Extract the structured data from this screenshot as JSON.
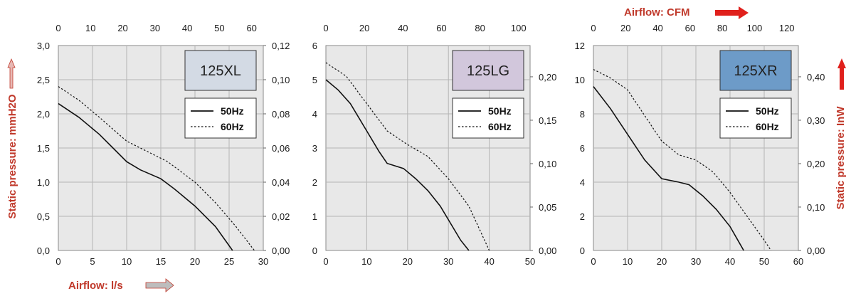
{
  "labels": {
    "left_ylabel": "Static pressure: mmH2O",
    "right_ylabel": "Static pressure: InW",
    "bottom_xlabel": "Airflow: l/s",
    "top_xlabel": "Airflow: CFM"
  },
  "colors": {
    "label_red": "#c0392b",
    "plot_bg": "#e8e8e8",
    "grid": "#b5b5b5",
    "arrow_grey": "#9a9a9a",
    "arrow_red": "#e0201c"
  },
  "legend": {
    "hz50": "50Hz",
    "hz60": "60Hz"
  },
  "chart_data": [
    {
      "type": "line",
      "model": "125XL",
      "model_color": "#d3dae4",
      "xlim": [
        0,
        30
      ],
      "ylim": [
        0,
        3.0
      ],
      "x_ticks": [
        "0",
        "5",
        "10",
        "15",
        "20",
        "25",
        "30"
      ],
      "y_ticks": [
        "0,0",
        "0,5",
        "1,0",
        "1,5",
        "2,0",
        "2,5",
        "3,0"
      ],
      "top_ticks": [
        "0",
        "10",
        "20",
        "30",
        "40",
        "50",
        "60"
      ],
      "top_range": [
        0,
        63.6
      ],
      "right_ticks": [
        "0,00",
        "0,02",
        "0,04",
        "0,06",
        "0,08",
        "0,10",
        "0,12"
      ],
      "right_range": [
        0,
        0.12
      ],
      "series": [
        {
          "name": "50Hz",
          "style": "solid",
          "points": [
            [
              0,
              2.15
            ],
            [
              3,
              1.95
            ],
            [
              6,
              1.7
            ],
            [
              8,
              1.5
            ],
            [
              10,
              1.3
            ],
            [
              12,
              1.18
            ],
            [
              15,
              1.05
            ],
            [
              17,
              0.9
            ],
            [
              20,
              0.65
            ],
            [
              23,
              0.35
            ],
            [
              25.5,
              0.0
            ]
          ]
        },
        {
          "name": "60Hz",
          "style": "dotted",
          "points": [
            [
              0,
              2.4
            ],
            [
              3,
              2.2
            ],
            [
              6,
              1.95
            ],
            [
              10,
              1.6
            ],
            [
              13,
              1.45
            ],
            [
              16,
              1.3
            ],
            [
              20,
              1.0
            ],
            [
              23,
              0.7
            ],
            [
              26,
              0.35
            ],
            [
              28.7,
              0.0
            ]
          ]
        }
      ]
    },
    {
      "type": "line",
      "model": "125LG",
      "model_color": "#d2c7dc",
      "xlim": [
        0,
        50
      ],
      "ylim": [
        0,
        6
      ],
      "x_ticks": [
        "0",
        "10",
        "20",
        "30",
        "40",
        "50"
      ],
      "y_ticks": [
        "0",
        "1",
        "2",
        "3",
        "4",
        "5",
        "6"
      ],
      "top_ticks": [
        "0",
        "20",
        "40",
        "60",
        "80",
        "100"
      ],
      "top_range": [
        0,
        106
      ],
      "right_ticks": [
        "0,00",
        "0,05",
        "0,10",
        "0,15",
        "0,20"
      ],
      "right_range": [
        0,
        0.236
      ],
      "series": [
        {
          "name": "50Hz",
          "style": "solid",
          "points": [
            [
              0,
              5.0
            ],
            [
              3,
              4.7
            ],
            [
              6,
              4.3
            ],
            [
              10,
              3.5
            ],
            [
              13,
              2.9
            ],
            [
              15,
              2.55
            ],
            [
              19,
              2.4
            ],
            [
              22,
              2.1
            ],
            [
              25,
              1.75
            ],
            [
              28,
              1.3
            ],
            [
              31,
              0.7
            ],
            [
              33,
              0.3
            ],
            [
              35,
              0.0
            ]
          ]
        },
        {
          "name": "60Hz",
          "style": "dotted",
          "points": [
            [
              0,
              5.5
            ],
            [
              5,
              5.1
            ],
            [
              10,
              4.3
            ],
            [
              15,
              3.5
            ],
            [
              20,
              3.1
            ],
            [
              25,
              2.75
            ],
            [
              30,
              2.1
            ],
            [
              35,
              1.3
            ],
            [
              40,
              0.0
            ]
          ]
        }
      ]
    },
    {
      "type": "line",
      "model": "125XR",
      "model_color": "#6d9bc8",
      "xlim": [
        0,
        60
      ],
      "ylim": [
        0,
        12
      ],
      "x_ticks": [
        "0",
        "10",
        "20",
        "30",
        "40",
        "50",
        "60"
      ],
      "y_ticks": [
        "0",
        "2",
        "4",
        "6",
        "8",
        "10",
        "12"
      ],
      "top_ticks": [
        "0",
        "20",
        "40",
        "60",
        "80",
        "100",
        "120"
      ],
      "top_range": [
        0,
        127.2
      ],
      "right_ticks": [
        "0,00",
        "0,10",
        "0,20",
        "0,30",
        "0,40"
      ],
      "right_range": [
        0,
        0.472
      ],
      "series": [
        {
          "name": "50Hz",
          "style": "solid",
          "points": [
            [
              0,
              9.6
            ],
            [
              5,
              8.3
            ],
            [
              10,
              6.8
            ],
            [
              15,
              5.3
            ],
            [
              20,
              4.2
            ],
            [
              25,
              4.0
            ],
            [
              28,
              3.85
            ],
            [
              32,
              3.2
            ],
            [
              36,
              2.4
            ],
            [
              40,
              1.4
            ],
            [
              42,
              0.7
            ],
            [
              44,
              0.0
            ]
          ]
        },
        {
          "name": "60Hz",
          "style": "dotted",
          "points": [
            [
              0,
              10.6
            ],
            [
              5,
              10.1
            ],
            [
              10,
              9.4
            ],
            [
              15,
              7.9
            ],
            [
              20,
              6.4
            ],
            [
              25,
              5.6
            ],
            [
              30,
              5.3
            ],
            [
              35,
              4.6
            ],
            [
              40,
              3.4
            ],
            [
              45,
              2.0
            ],
            [
              50,
              0.6
            ],
            [
              52,
              0.0
            ]
          ]
        }
      ]
    }
  ]
}
